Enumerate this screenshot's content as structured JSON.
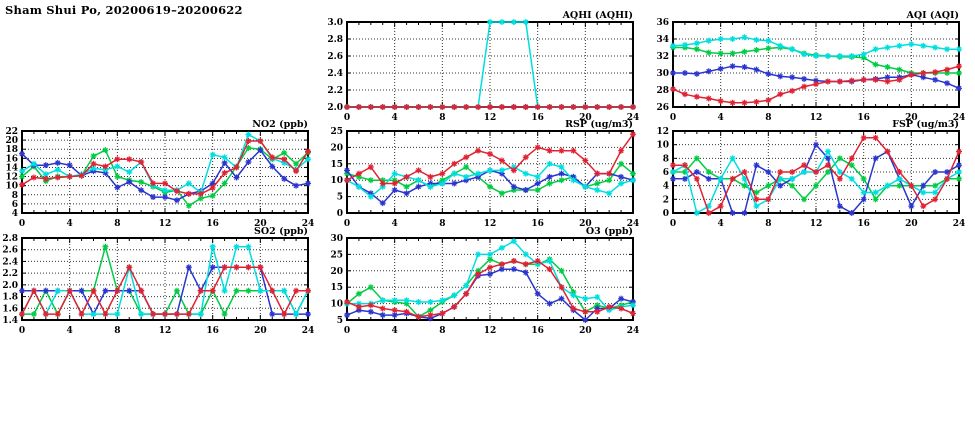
{
  "page_title": "Sham Shui Po, 20200619–20200622",
  "colors": {
    "red": "#e02233",
    "green": "#00cc44",
    "blue": "#2a35cf",
    "cyan": "#00dfe0"
  },
  "x_hours": [
    0,
    1,
    2,
    3,
    4,
    5,
    6,
    7,
    8,
    9,
    10,
    11,
    12,
    13,
    14,
    15,
    16,
    17,
    18,
    19,
    20,
    21,
    22,
    23,
    24
  ],
  "chart_data": [
    {
      "key": "aqhi",
      "type": "line",
      "title": "AQHI (AQHI)",
      "xlim": [
        0,
        24
      ],
      "xticks": [
        0,
        4,
        8,
        12,
        16,
        20,
        24
      ],
      "ylim": [
        2.0,
        3.0
      ],
      "yticks": [
        2.0,
        2.2,
        2.4,
        2.6,
        2.8,
        3.0
      ],
      "ytick_labels": [
        "2.0",
        "2.2",
        "2.4",
        "2.6",
        "2.8",
        "3.0"
      ],
      "grid": true,
      "legend": "none",
      "series": [
        {
          "name": "green",
          "color": "green",
          "values": [
            2,
            2,
            2,
            2,
            2,
            2,
            2,
            2,
            2,
            2,
            2,
            2,
            2,
            2,
            2,
            2,
            2,
            2,
            2,
            2,
            2,
            2,
            2,
            2,
            2
          ]
        },
        {
          "name": "blue",
          "color": "blue",
          "values": [
            2,
            2,
            2,
            2,
            2,
            2,
            2,
            2,
            2,
            2,
            2,
            2,
            2,
            2,
            2,
            2,
            2,
            2,
            2,
            2,
            2,
            2,
            2,
            2,
            2
          ]
        },
        {
          "name": "cyan",
          "color": "cyan",
          "values": [
            2,
            2,
            2,
            2,
            2,
            2,
            2,
            2,
            2,
            2,
            2,
            2,
            3,
            3,
            3,
            3,
            2,
            2,
            2,
            2,
            2,
            2,
            2,
            2,
            2
          ]
        },
        {
          "name": "red",
          "color": "red",
          "values": [
            2,
            2,
            2,
            2,
            2,
            2,
            2,
            2,
            2,
            2,
            2,
            2,
            2,
            2,
            2,
            2,
            2,
            2,
            2,
            2,
            2,
            2,
            2,
            2,
            2
          ]
        }
      ]
    },
    {
      "key": "aqi",
      "type": "line",
      "title": "AQI (AQI)",
      "xlim": [
        0,
        24
      ],
      "xticks": [
        0,
        4,
        8,
        12,
        16,
        20,
        24
      ],
      "ylim": [
        26,
        36
      ],
      "yticks": [
        26,
        28,
        30,
        32,
        34,
        36
      ],
      "ytick_labels": [
        "26",
        "28",
        "30",
        "32",
        "34",
        "36"
      ],
      "grid": true,
      "legend": "none",
      "series": [
        {
          "name": "green",
          "color": "green",
          "values": [
            33,
            33,
            32.8,
            32.4,
            32.3,
            32.3,
            32.5,
            32.7,
            32.9,
            33,
            32.8,
            32.3,
            32.1,
            32,
            31.9,
            31.9,
            31.8,
            31,
            30.7,
            30.4,
            30,
            30,
            30,
            30,
            30
          ]
        },
        {
          "name": "blue",
          "color": "blue",
          "values": [
            30,
            30,
            29.9,
            30.2,
            30.5,
            30.8,
            30.7,
            30.4,
            29.9,
            29.6,
            29.5,
            29.3,
            29.1,
            29,
            29,
            29,
            29.2,
            29.3,
            29.5,
            29.5,
            29.8,
            29.5,
            29.2,
            28.8,
            28.2
          ]
        },
        {
          "name": "cyan",
          "color": "cyan",
          "values": [
            33.2,
            33.3,
            33.5,
            33.8,
            34,
            34,
            34.2,
            33.9,
            33.8,
            33.2,
            32.8,
            32.2,
            32,
            32,
            32,
            32,
            32.2,
            32.8,
            33,
            33.2,
            33.4,
            33.2,
            33,
            32.8,
            32.8
          ]
        },
        {
          "name": "red",
          "color": "red",
          "values": [
            28.1,
            27.5,
            27.2,
            27,
            26.7,
            26.5,
            26.5,
            26.6,
            26.8,
            27.5,
            27.9,
            28.4,
            28.7,
            29,
            29,
            29.1,
            29.2,
            29.2,
            29,
            29.2,
            29.8,
            30,
            30.1,
            30.4,
            30.8
          ]
        }
      ]
    },
    {
      "key": "no2",
      "type": "line",
      "title": "NO2 (ppb)",
      "xlim": [
        0,
        24
      ],
      "xticks": [
        0,
        4,
        8,
        12,
        16,
        20,
        24
      ],
      "ylim": [
        4,
        22
      ],
      "yticks": [
        4,
        6,
        8,
        10,
        12,
        14,
        16,
        18,
        20,
        22
      ],
      "ytick_labels": [
        "4",
        "6",
        "8",
        "10",
        "12",
        "14",
        "16",
        "18",
        "20",
        "22"
      ],
      "grid": true,
      "legend": "none",
      "series": [
        {
          "name": "green",
          "color": "green",
          "values": [
            12,
            14.2,
            11,
            12,
            12,
            12.2,
            16.5,
            17.8,
            12,
            11.2,
            10.8,
            9.8,
            8.5,
            9,
            5.6,
            7.2,
            7.8,
            10.5,
            14.2,
            18.3,
            18,
            15.8,
            17.2,
            14.8,
            17.3
          ]
        },
        {
          "name": "blue",
          "color": "blue",
          "values": [
            17,
            14.5,
            14.5,
            15,
            14.5,
            12.2,
            13.2,
            12.8,
            9.6,
            10.8,
            9,
            7.5,
            7.5,
            6.8,
            8.2,
            8.8,
            10.5,
            15,
            11.8,
            15.2,
            17.8,
            14.2,
            11.5,
            10,
            10.5
          ]
        },
        {
          "name": "cyan",
          "color": "cyan",
          "values": [
            13.2,
            14.8,
            12.5,
            13.5,
            12,
            12.5,
            13.8,
            13.5,
            14.2,
            13,
            15.2,
            10,
            9,
            9,
            10.5,
            8.5,
            16.8,
            16.2,
            14,
            21.2,
            19.8,
            16,
            15,
            13.5,
            15.8
          ]
        },
        {
          "name": "red",
          "color": "red",
          "values": [
            10.2,
            11.8,
            11.5,
            11.8,
            12,
            12.2,
            14.8,
            14.2,
            15.8,
            15.8,
            15.2,
            10.5,
            10.5,
            8.8,
            8.2,
            8.2,
            9.5,
            12.8,
            14,
            19.8,
            19.8,
            16.2,
            15.8,
            13.2,
            17.5
          ]
        }
      ]
    },
    {
      "key": "rsp",
      "type": "line",
      "title": "RSP (ug/m3)",
      "xlim": [
        0,
        24
      ],
      "xticks": [
        0,
        4,
        8,
        12,
        16,
        20,
        24
      ],
      "ylim": [
        0,
        25
      ],
      "yticks": [
        0,
        5,
        10,
        15,
        20,
        25
      ],
      "ytick_labels": [
        "0",
        "5",
        "10",
        "15",
        "20",
        "25"
      ],
      "grid": true,
      "legend": "none",
      "series": [
        {
          "name": "green",
          "color": "green",
          "values": [
            12,
            11,
            10,
            10,
            10,
            8,
            10,
            8,
            10,
            12,
            14,
            11,
            8,
            6,
            7,
            7,
            7,
            9,
            10,
            11,
            8,
            9,
            10,
            15,
            12
          ]
        },
        {
          "name": "blue",
          "color": "blue",
          "values": [
            13,
            8,
            6,
            3,
            7,
            6,
            8,
            9,
            9,
            9,
            10,
            11,
            13,
            12,
            8,
            7,
            9,
            11,
            12,
            11,
            8,
            12,
            12,
            11,
            10
          ]
        },
        {
          "name": "cyan",
          "color": "cyan",
          "values": [
            10,
            8,
            5,
            8,
            12,
            11,
            10,
            8,
            9,
            12,
            11,
            12,
            13,
            13,
            14,
            12,
            11,
            15,
            14,
            10,
            8,
            7,
            6,
            9,
            10
          ]
        },
        {
          "name": "red",
          "color": "red",
          "values": [
            10,
            12,
            14,
            9,
            9,
            11,
            13,
            11,
            12,
            15,
            17,
            19,
            18,
            16,
            13,
            17,
            20,
            19,
            19,
            19,
            16,
            12,
            12,
            19,
            24
          ]
        }
      ]
    },
    {
      "key": "fsp",
      "type": "line",
      "title": "FSP (ug/m3)",
      "xlim": [
        0,
        24
      ],
      "xticks": [
        0,
        4,
        8,
        12,
        16,
        20,
        24
      ],
      "ylim": [
        0,
        12
      ],
      "yticks": [
        0,
        2,
        4,
        6,
        8,
        10,
        12
      ],
      "ytick_labels": [
        "0",
        "2",
        "4",
        "6",
        "8",
        "10",
        "12"
      ],
      "grid": true,
      "legend": "none",
      "series": [
        {
          "name": "green",
          "color": "green",
          "values": [
            6,
            6,
            8,
            6,
            5,
            5,
            4,
            3,
            4,
            5,
            4,
            2,
            4,
            6,
            8,
            7,
            5,
            2,
            4,
            4,
            4,
            4,
            4,
            5,
            5
          ]
        },
        {
          "name": "blue",
          "color": "blue",
          "values": [
            5,
            5,
            6,
            5,
            5,
            0,
            0,
            7,
            6,
            4,
            5,
            6,
            10,
            8,
            1,
            0,
            2,
            8,
            9,
            5,
            1,
            4,
            6,
            6,
            7
          ]
        },
        {
          "name": "cyan",
          "color": "cyan",
          "values": [
            6,
            7,
            0,
            1,
            5,
            8,
            5,
            1,
            2,
            5,
            5,
            6,
            6,
            9,
            6,
            5,
            3,
            3,
            4,
            5,
            4,
            3,
            3,
            5,
            6
          ]
        },
        {
          "name": "red",
          "color": "red",
          "values": [
            7,
            7,
            5,
            0,
            1,
            5,
            6,
            2,
            2,
            6,
            6,
            7,
            6,
            7,
            5,
            8,
            11,
            11,
            9,
            6,
            4,
            1,
            2,
            5,
            9
          ]
        }
      ]
    },
    {
      "key": "so2",
      "type": "line",
      "title": "SO2 (ppb)",
      "xlim": [
        0,
        24
      ],
      "xticks": [
        0,
        4,
        8,
        12,
        16,
        20,
        24
      ],
      "ylim": [
        1.4,
        2.8
      ],
      "yticks": [
        1.4,
        1.6,
        1.8,
        2.0,
        2.2,
        2.4,
        2.6,
        2.8
      ],
      "ytick_labels": [
        "1.4",
        "1.6",
        "1.8",
        "2.0",
        "2.2",
        "2.4",
        "2.6",
        "2.8"
      ],
      "grid": true,
      "legend": "none",
      "series": [
        {
          "name": "green",
          "color": "green",
          "values": [
            1.5,
            1.5,
            1.9,
            1.5,
            1.9,
            1.9,
            1.9,
            2.65,
            1.9,
            1.9,
            1.5,
            1.5,
            1.5,
            1.9,
            1.5,
            1.5,
            1.9,
            1.5,
            1.9,
            1.9,
            1.9,
            1.9,
            1.9,
            1.5,
            1.9
          ]
        },
        {
          "name": "blue",
          "color": "blue",
          "values": [
            1.9,
            1.9,
            1.9,
            1.9,
            1.9,
            1.9,
            1.5,
            1.9,
            1.9,
            1.9,
            1.9,
            1.5,
            1.5,
            1.5,
            2.3,
            1.9,
            2.3,
            2.3,
            2.3,
            2.3,
            2.3,
            1.5,
            1.5,
            1.5,
            1.5
          ]
        },
        {
          "name": "cyan",
          "color": "cyan",
          "values": [
            1.5,
            1.9,
            1.5,
            1.9,
            1.9,
            1.5,
            1.5,
            1.5,
            1.5,
            2.3,
            1.5,
            1.5,
            1.5,
            1.5,
            1.5,
            1.5,
            2.65,
            1.9,
            2.65,
            2.65,
            1.9,
            1.9,
            1.9,
            1.5,
            1.9
          ]
        },
        {
          "name": "red",
          "color": "red",
          "values": [
            1.5,
            1.9,
            1.5,
            1.5,
            1.9,
            1.5,
            1.9,
            1.5,
            1.9,
            2.3,
            1.9,
            1.5,
            1.5,
            1.5,
            1.5,
            1.9,
            1.9,
            2.3,
            2.3,
            2.3,
            2.3,
            1.9,
            1.5,
            1.9,
            1.9
          ]
        }
      ]
    },
    {
      "key": "o3",
      "type": "line",
      "title": "O3 (ppb)",
      "xlim": [
        0,
        24
      ],
      "xticks": [
        0,
        4,
        8,
        12,
        16,
        20,
        24
      ],
      "ylim": [
        5,
        30
      ],
      "yticks": [
        5,
        10,
        15,
        20,
        25,
        30
      ],
      "ytick_labels": [
        "5",
        "10",
        "15",
        "20",
        "25",
        "30"
      ],
      "grid": true,
      "legend": "none",
      "series": [
        {
          "name": "green",
          "color": "green",
          "values": [
            10,
            13,
            15,
            11,
            10.5,
            10,
            6,
            8,
            10.5,
            12.5,
            15.5,
            20,
            23.5,
            22,
            23,
            22,
            22,
            23.5,
            20,
            13.5,
            7.5,
            9.5,
            8.5,
            9.5,
            10.5
          ]
        },
        {
          "name": "blue",
          "color": "blue",
          "values": [
            6.5,
            8,
            7.5,
            6.5,
            6.5,
            7,
            6,
            5.5,
            7,
            9,
            13,
            18.5,
            19,
            20.5,
            20.5,
            19.5,
            13,
            10,
            11.5,
            8,
            5,
            8.5,
            8.5,
            11.5,
            10.5
          ]
        },
        {
          "name": "cyan",
          "color": "cyan",
          "values": [
            10,
            10,
            10,
            11,
            11,
            11,
            10.5,
            10.5,
            11,
            12.5,
            15.5,
            25,
            25,
            27,
            29,
            25,
            22,
            23,
            15,
            12.5,
            11.5,
            12,
            8,
            9,
            9.5
          ]
        },
        {
          "name": "red",
          "color": "red",
          "values": [
            10.5,
            9,
            9.5,
            8.5,
            8,
            7.5,
            6,
            6.5,
            7,
            9,
            13,
            19,
            21,
            22,
            23,
            22,
            23,
            20.5,
            15,
            8.5,
            7.5,
            7.5,
            9,
            8.5,
            7
          ]
        }
      ]
    }
  ]
}
